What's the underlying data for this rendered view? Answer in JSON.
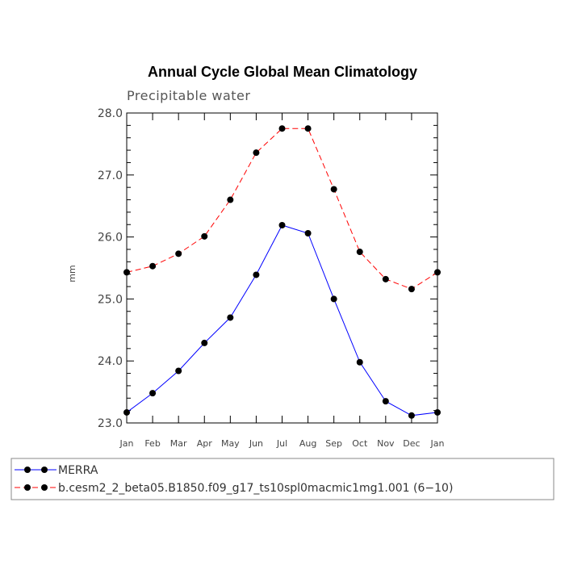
{
  "chart_data": {
    "type": "line",
    "title": "Annual Cycle Global Mean Climatology",
    "subtitle": "Precipitable water",
    "xlabel": "",
    "ylabel": "mm",
    "categories": [
      "Jan",
      "Feb",
      "Mar",
      "Apr",
      "May",
      "Jun",
      "Jul",
      "Aug",
      "Sep",
      "Oct",
      "Nov",
      "Dec",
      "Jan"
    ],
    "ylim": [
      23.0,
      28.0
    ],
    "yticks": [
      "23.0",
      "24.0",
      "25.0",
      "26.0",
      "27.0",
      "28.0"
    ],
    "grid": false,
    "legend_position": "bottom",
    "series": [
      {
        "name": "MERRA",
        "color": "#0000ff",
        "dash": "solid",
        "marker": "dot",
        "values": [
          23.17,
          23.48,
          23.84,
          24.29,
          24.7,
          25.39,
          26.19,
          26.06,
          25.0,
          23.98,
          23.35,
          23.12,
          23.17
        ]
      },
      {
        "name": "b.cesm2_2_beta05.B1850.f09_g17_ts10spl0macmic1mg1.001 (6−10)",
        "color": "#ff0000",
        "dash": "dashed",
        "marker": "dot",
        "values": [
          25.43,
          25.53,
          25.73,
          26.01,
          26.6,
          27.36,
          27.75,
          27.75,
          26.77,
          25.76,
          25.32,
          25.16,
          25.43
        ]
      }
    ]
  }
}
